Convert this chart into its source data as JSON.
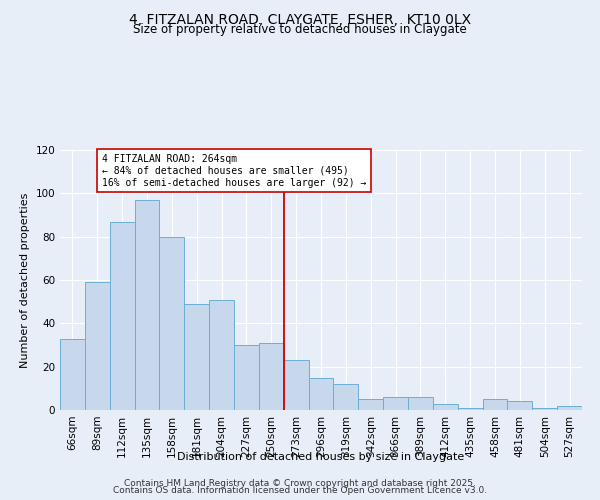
{
  "title": "4, FITZALAN ROAD, CLAYGATE, ESHER,  KT10 0LX",
  "subtitle": "Size of property relative to detached houses in Claygate",
  "xlabel": "Distribution of detached houses by size in Claygate",
  "ylabel": "Number of detached properties",
  "categories": [
    "66sqm",
    "89sqm",
    "112sqm",
    "135sqm",
    "158sqm",
    "181sqm",
    "204sqm",
    "227sqm",
    "250sqm",
    "273sqm",
    "296sqm",
    "319sqm",
    "342sqm",
    "366sqm",
    "389sqm",
    "412sqm",
    "435sqm",
    "458sqm",
    "481sqm",
    "504sqm",
    "527sqm"
  ],
  "values": [
    33,
    59,
    87,
    97,
    80,
    49,
    51,
    30,
    31,
    23,
    15,
    12,
    5,
    6,
    6,
    3,
    1,
    5,
    4,
    1,
    2
  ],
  "bar_color": "#c8d8ec",
  "bar_edge_color": "#6baed6",
  "vline_x": 8.5,
  "vline_color": "#cc0000",
  "annotation_title": "4 FITZALAN ROAD: 264sqm",
  "annotation_line1": "← 84% of detached houses are smaller (495)",
  "annotation_line2": "16% of semi-detached houses are larger (92) →",
  "annotation_box_color": "#ffffff",
  "annotation_box_edge": "#cc0000",
  "ylim": [
    0,
    120
  ],
  "yticks": [
    0,
    20,
    40,
    60,
    80,
    100,
    120
  ],
  "background_color": "#e8eef8",
  "grid_color": "#ffffff",
  "footer1": "Contains HM Land Registry data © Crown copyright and database right 2025.",
  "footer2": "Contains OS data. Information licensed under the Open Government Licence v3.0.",
  "title_fontsize": 10,
  "axis_label_fontsize": 8,
  "tick_fontsize": 7.5,
  "footer_fontsize": 6.5
}
